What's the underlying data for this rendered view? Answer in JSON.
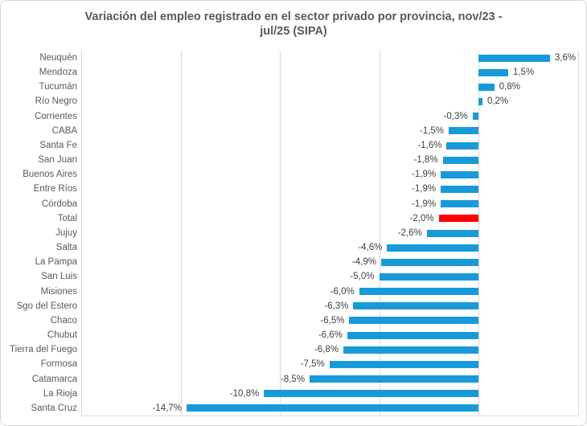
{
  "chart": {
    "title_lines": [
      "Variación del empleo registrado en el sector privado por provincia, nov/23 -",
      "jul/25 (SIPA)"
    ]
  },
  "chart_data": {
    "type": "bar",
    "orientation": "horizontal",
    "title": "Variación del empleo registrado en el sector privado por provincia, nov/23 - jul/25 (SIPA)",
    "xlabel": "",
    "ylabel": "",
    "xlim": [
      -20,
      5
    ],
    "gridline_step": 5,
    "grid": true,
    "legend": false,
    "unit": "%",
    "bar_color": "#189ad8",
    "highlight_color": "#ff0000",
    "highlight_category": "Total",
    "categories": [
      "Neuquén",
      "Mendoza",
      "Tucumán",
      "Río Negro",
      "Corrientes",
      "CABA",
      "Santa Fe",
      "San Juan",
      "Buenos Aires",
      "Entre Ríos",
      "Córdoba",
      "Total",
      "Jujuy",
      "Salta",
      "La Pampa",
      "San Luis",
      "Misiones",
      "Sgo del Estero",
      "Chaco",
      "Chubut",
      "Tierra del Fuego",
      "Formosa",
      "Catamarca",
      "La Rioja",
      "Santa Cruz"
    ],
    "values": [
      3.6,
      1.5,
      0.8,
      0.2,
      -0.3,
      -1.5,
      -1.6,
      -1.8,
      -1.9,
      -1.9,
      -1.9,
      -2.0,
      -2.6,
      -4.6,
      -4.9,
      -5.0,
      -6.0,
      -6.3,
      -6.5,
      -6.6,
      -6.8,
      -7.5,
      -8.5,
      -10.8,
      -14.7
    ],
    "value_labels": [
      "3,6%",
      "1,5%",
      "0,8%",
      "0,2%",
      "-0,3%",
      "-1,5%",
      "-1,6%",
      "-1,8%",
      "-1,9%",
      "-1,9%",
      "-1,9%",
      "-2,0%",
      "-2,6%",
      "-4,6%",
      "-4,9%",
      "-5,0%",
      "-6,0%",
      "-6,3%",
      "-6,5%",
      "-6,6%",
      "-6,8%",
      "-7,5%",
      "-8,5%",
      "-10,8%",
      "-14,7%"
    ],
    "colors_note": {
      "grid": "#d9d9d9",
      "title_text": "#595959",
      "category_text": "#595959",
      "value_text": "#404040"
    }
  }
}
